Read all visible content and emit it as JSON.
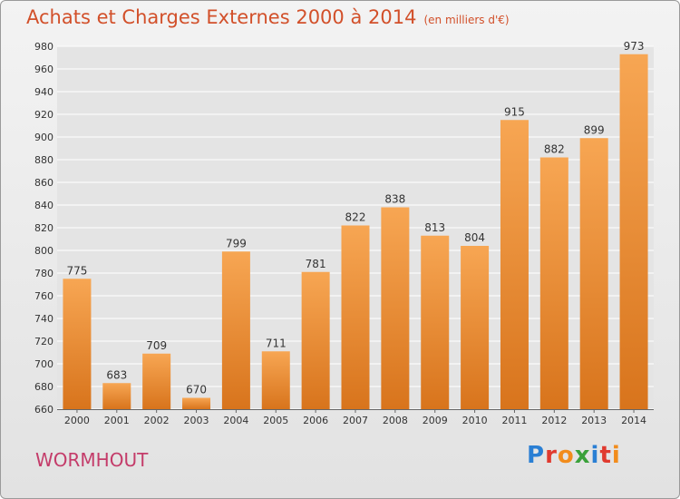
{
  "header": {
    "title": "Achats et Charges Externes 2000 à 2014",
    "unit": "(en milliers d'€)"
  },
  "footer": {
    "town": "WORMHOUT",
    "logo_letters": [
      "P",
      "r",
      "o",
      "x",
      "i",
      "t",
      "i"
    ],
    "logo_colors": [
      "#2a7fd4",
      "#e03a2f",
      "#f28c1c",
      "#3aa13a",
      "#2a7fd4",
      "#e03a2f",
      "#f28c1c"
    ]
  },
  "colors": {
    "bar_top": "#f7a653",
    "bar_bottom": "#d8741c",
    "grid": "#ffffff",
    "title": "#d2502a",
    "town": "#c43c6a"
  },
  "chart_data": {
    "type": "bar",
    "title": "Achats et Charges Externes 2000 à 2014",
    "subtitle": "(en milliers d'€)",
    "xlabel": "",
    "ylabel": "",
    "categories": [
      "2000",
      "2001",
      "2002",
      "2003",
      "2004",
      "2005",
      "2006",
      "2007",
      "2008",
      "2009",
      "2010",
      "2011",
      "2012",
      "2013",
      "2014"
    ],
    "values": [
      775,
      683,
      709,
      670,
      799,
      711,
      781,
      822,
      838,
      813,
      804,
      915,
      882,
      899,
      973
    ],
    "ylim": [
      660,
      980
    ],
    "yticks": [
      660,
      680,
      700,
      720,
      740,
      760,
      780,
      800,
      820,
      840,
      860,
      880,
      900,
      920,
      940,
      960,
      980
    ],
    "grid": true,
    "legend": "none"
  }
}
